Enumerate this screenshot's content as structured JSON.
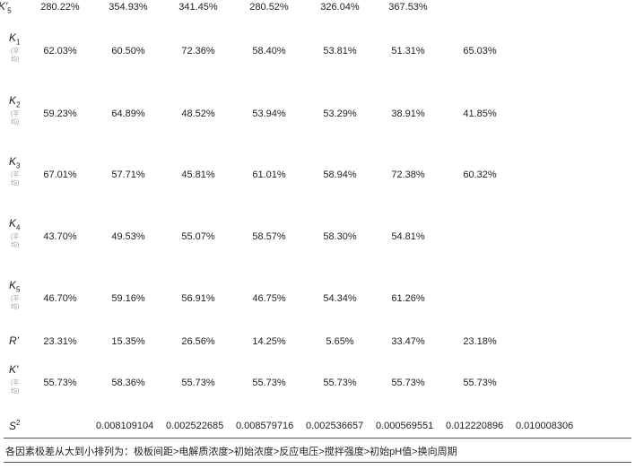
{
  "table": {
    "rows": [
      {
        "symbol": "K'",
        "sub": "5",
        "values": [
          "280.22%",
          "354.93%",
          "341.45%",
          "280.52%",
          "326.04%",
          "367.53%"
        ]
      },
      {
        "symbol": "K",
        "sub": "1",
        "note": "(平均)",
        "values": [
          "62.03%",
          "60.50%",
          "72.36%",
          "58.40%",
          "53.81%",
          "51.31%",
          "65.03%"
        ]
      },
      {
        "symbol": "K",
        "sub": "2",
        "note": "(平均)",
        "values": [
          "59.23%",
          "64.89%",
          "48.52%",
          "53.94%",
          "53.29%",
          "38.91%",
          "41.85%"
        ]
      },
      {
        "symbol": "K",
        "sub": "3",
        "note": "(平均)",
        "values": [
          "67.01%",
          "57.71%",
          "45.81%",
          "61.01%",
          "58.94%",
          "72.38%",
          "60.32%"
        ]
      },
      {
        "symbol": "K",
        "sub": "4",
        "note": "(平均)",
        "values": [
          "43.70%",
          "49.53%",
          "55.07%",
          "58.57%",
          "58.30%",
          "54.81%"
        ]
      },
      {
        "symbol": "K",
        "sub": "5",
        "note": "(平均)",
        "values": [
          "46.70%",
          "59.16%",
          "56.91%",
          "46.75%",
          "54.34%",
          "61.26%"
        ]
      },
      {
        "symbol": "R'",
        "values": [
          "23.31%",
          "15.35%",
          "26.56%",
          "14.25%",
          "5.65%",
          "33.47%",
          "23.18%"
        ]
      },
      {
        "symbol": "K'",
        "note": "(平均)",
        "values": [
          "55.73%",
          "58.36%",
          "55.73%",
          "55.73%",
          "55.73%",
          "55.73%",
          "55.73%"
        ]
      },
      {
        "symbol": "S",
        "sup": "2",
        "values": [
          "0.008109104",
          "0.002522685",
          "0.008579716",
          "0.002536657",
          "0.000569551",
          "0.012220896",
          "0.010008306"
        ]
      }
    ],
    "footnote": "各因素极差从大到小排列为：极板间距>电解质浓度>初始浓度>反应电压>搅拌强度>初始pH值>换向周期"
  }
}
